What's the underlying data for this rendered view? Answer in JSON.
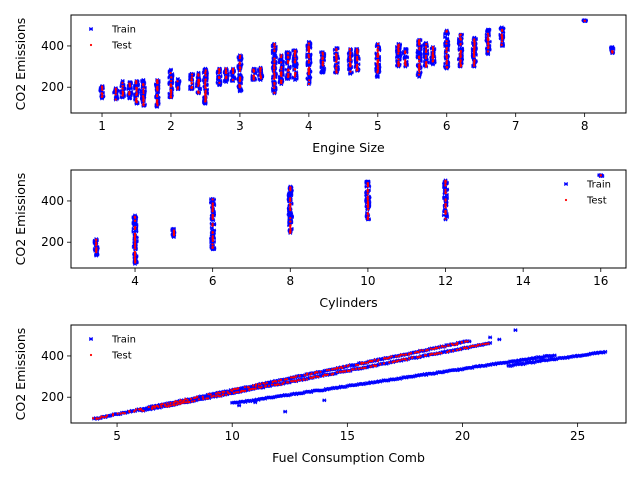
{
  "series_colors": {
    "train": "#0000ff",
    "test": "#ff0000"
  },
  "chart_data": [
    {
      "type": "scatter",
      "xlabel": "Engine Size",
      "ylabel": "CO2 Emissions",
      "xlim": [
        0.55,
        8.6
      ],
      "ylim": [
        75,
        550
      ],
      "xticks": [
        1,
        2,
        3,
        4,
        5,
        6,
        7,
        8
      ],
      "yticks": [
        200,
        400
      ],
      "legend": {
        "position": "upper-left",
        "entries": [
          "Train",
          "Test"
        ]
      },
      "clusters": [
        [
          1.0,
          145,
          205
        ],
        [
          1.2,
          140,
          195
        ],
        [
          1.3,
          150,
          230
        ],
        [
          1.4,
          145,
          225
        ],
        [
          1.5,
          120,
          230
        ],
        [
          1.6,
          110,
          235
        ],
        [
          1.8,
          105,
          235
        ],
        [
          2.0,
          150,
          285
        ],
        [
          2.1,
          190,
          240
        ],
        [
          2.3,
          190,
          265
        ],
        [
          2.4,
          170,
          270
        ],
        [
          2.5,
          120,
          290
        ],
        [
          2.7,
          210,
          290
        ],
        [
          2.8,
          225,
          290
        ],
        [
          2.9,
          230,
          290
        ],
        [
          3.0,
          180,
          355
        ],
        [
          3.2,
          235,
          290
        ],
        [
          3.3,
          235,
          295
        ],
        [
          3.5,
          170,
          410
        ],
        [
          3.6,
          215,
          355
        ],
        [
          3.7,
          240,
          370
        ],
        [
          3.8,
          235,
          380
        ],
        [
          4.0,
          215,
          420
        ],
        [
          4.2,
          270,
          370
        ],
        [
          4.4,
          270,
          390
        ],
        [
          4.6,
          265,
          385
        ],
        [
          4.7,
          280,
          385
        ],
        [
          5.0,
          250,
          410
        ],
        [
          5.3,
          300,
          410
        ],
        [
          5.4,
          300,
          385
        ],
        [
          5.6,
          250,
          430
        ],
        [
          5.7,
          300,
          415
        ],
        [
          5.8,
          310,
          395
        ],
        [
          6.0,
          290,
          475
        ],
        [
          6.2,
          300,
          455
        ],
        [
          6.4,
          300,
          440
        ],
        [
          6.6,
          360,
          480
        ],
        [
          6.8,
          400,
          490
        ],
        [
          8.0,
          520,
          525
        ],
        [
          8.4,
          365,
          395
        ]
      ],
      "series": [
        {
          "name": "Train"
        },
        {
          "name": "Test"
        }
      ]
    },
    {
      "type": "scatter",
      "xlabel": "Cylinders",
      "ylabel": "CO2 Emissions",
      "xlim": [
        2.35,
        16.65
      ],
      "ylim": [
        75,
        550
      ],
      "xticks": [
        4,
        6,
        8,
        10,
        12,
        14,
        16
      ],
      "yticks": [
        200,
        400
      ],
      "legend": {
        "position": "upper-right",
        "entries": [
          "Train",
          "Test"
        ]
      },
      "clusters": [
        [
          3,
          135,
          215
        ],
        [
          4,
          95,
          330
        ],
        [
          5,
          225,
          265
        ],
        [
          6,
          165,
          410
        ],
        [
          8,
          245,
          470
        ],
        [
          10,
          310,
          495
        ],
        [
          12,
          310,
          500
        ],
        [
          16,
          520,
          525
        ]
      ],
      "series": [
        {
          "name": "Train"
        },
        {
          "name": "Test"
        }
      ]
    },
    {
      "type": "scatter",
      "xlabel": "Fuel Consumption Comb",
      "ylabel": "CO2 Emissions",
      "xlim": [
        3.0,
        27.1
      ],
      "ylim": [
        75,
        550
      ],
      "xticks": [
        5,
        10,
        15,
        20,
        25
      ],
      "yticks": [
        200,
        400
      ],
      "legend": {
        "position": "upper-left",
        "entries": [
          "Train",
          "Test"
        ]
      },
      "bands": [
        {
          "slope": 23.2,
          "intercept": 2,
          "x_from": 4.0,
          "x_to": 20.3
        },
        {
          "slope": 21.6,
          "intercept": 4,
          "x_from": 6.0,
          "x_to": 21.2
        },
        {
          "slope": 16.7,
          "intercept": 3,
          "x_from": 10.0,
          "x_to": 24.0
        },
        {
          "slope": 15.9,
          "intercept": 3,
          "x_from": 22.0,
          "x_to": 26.2
        }
      ],
      "outliers": [
        [
          10.3,
          160
        ],
        [
          11.0,
          175
        ],
        [
          12.3,
          130
        ],
        [
          14.0,
          185
        ],
        [
          21.2,
          490
        ],
        [
          22.3,
          525
        ],
        [
          21.6,
          480
        ]
      ],
      "series": [
        {
          "name": "Train"
        },
        {
          "name": "Test"
        }
      ]
    }
  ]
}
